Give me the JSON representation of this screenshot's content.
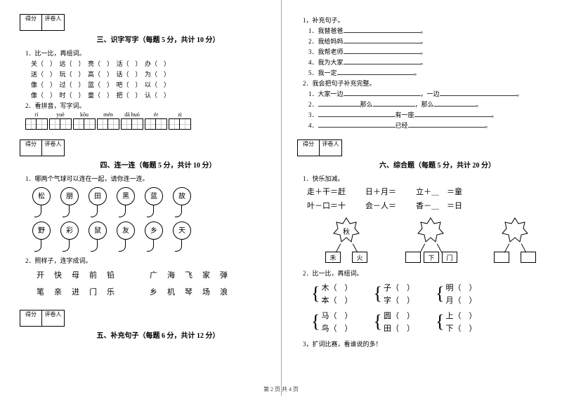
{
  "score_labels": {
    "score": "得分",
    "grader": "评卷人"
  },
  "sec3": {
    "title": "三、识字写字（每题 5 分，共计 10 分）",
    "q1_label": "1．比一比，再组词。",
    "rows": [
      [
        "关（　）",
        "远（　）",
        "亮（　）",
        "活（　）",
        "办（　）"
      ],
      [
        "送（　）",
        "玩（　）",
        "高（　）",
        "话（　）",
        "为（　）"
      ],
      [
        "像（　）",
        "过（　）",
        "蓝（　）",
        "吧（　）",
        "以（　）"
      ],
      [
        "像（　）",
        "时（　）",
        "童（　）",
        "把（　）",
        "认（　）"
      ]
    ],
    "q2_label": "2．看拼音，写字词。",
    "pinyin": [
      "rì",
      "yuè",
      "kōu",
      "mén",
      "dā huó",
      "ér",
      "zi"
    ]
  },
  "sec4": {
    "title": "四、连一连（每题 5 分，共计 10 分）",
    "q1_label": "1．哪两个气球可以连在一起，请你连一连。",
    "balloons_top": [
      "松",
      "朋",
      "田",
      "黑",
      "蓝",
      "故"
    ],
    "balloons_bot": [
      "野",
      "彩",
      "鼠",
      "友",
      "乡",
      "天"
    ],
    "q2_label": "2．照样子，连字成词。",
    "row_a1": [
      "开",
      "快",
      "母",
      "前",
      "铅"
    ],
    "row_a2": [
      "广",
      "海",
      "飞",
      "家",
      "弹"
    ],
    "row_b1": [
      "笔",
      "亲",
      "进",
      "门",
      "乐"
    ],
    "row_b2": [
      "乡",
      "机",
      "琴",
      "场",
      "浪"
    ]
  },
  "sec5": {
    "title": "五、补充句子（每题 6 分，共计 12 分）"
  },
  "sec5b": {
    "q1": "1，补充句子。",
    "lines": [
      "1．我替爸爸",
      "2．我给妈妈",
      "3．我帮老师",
      "4．我为大家",
      "5．我一定"
    ],
    "q2": "2．我会把句子补充完整。",
    "l1a": "1．大家一边",
    "l1b": "，一边",
    "l2a": "2．",
    "l2b": "那么",
    "l2c": "，那么",
    "l3a": "3．",
    "l3b": "有一座",
    "l4a": "4．",
    "l4b": "已经"
  },
  "sec6": {
    "title": "六、综合题（每题 5 分，共计 20 分）",
    "q1": "1．快乐加减。",
    "m1": [
      "走＋干＝赶",
      "日＋月＝",
      "立＋＿　＝童"
    ],
    "m2": [
      "叶－口＝十",
      "会－人＝",
      "香－＿　＝日"
    ],
    "star_center": "秋",
    "star_left": "禾",
    "star_right": "火",
    "star2_mid": "下",
    "star2_right": "门",
    "q2": "2．比一比，再组词。",
    "braces": [
      [
        [
          "木（　）",
          "本（　）"
        ],
        [
          "子（　）",
          "字（　）"
        ],
        [
          "明（　）",
          "月（　）"
        ]
      ],
      [
        [
          "马（　）",
          "鸟（　）"
        ],
        [
          "圆（　）",
          "田（　）"
        ],
        [
          "上（　）",
          "下（　）"
        ]
      ]
    ],
    "q3": "3，扩词比赛，看谁说的多！"
  },
  "footer": "第 2 页 共 4 页"
}
